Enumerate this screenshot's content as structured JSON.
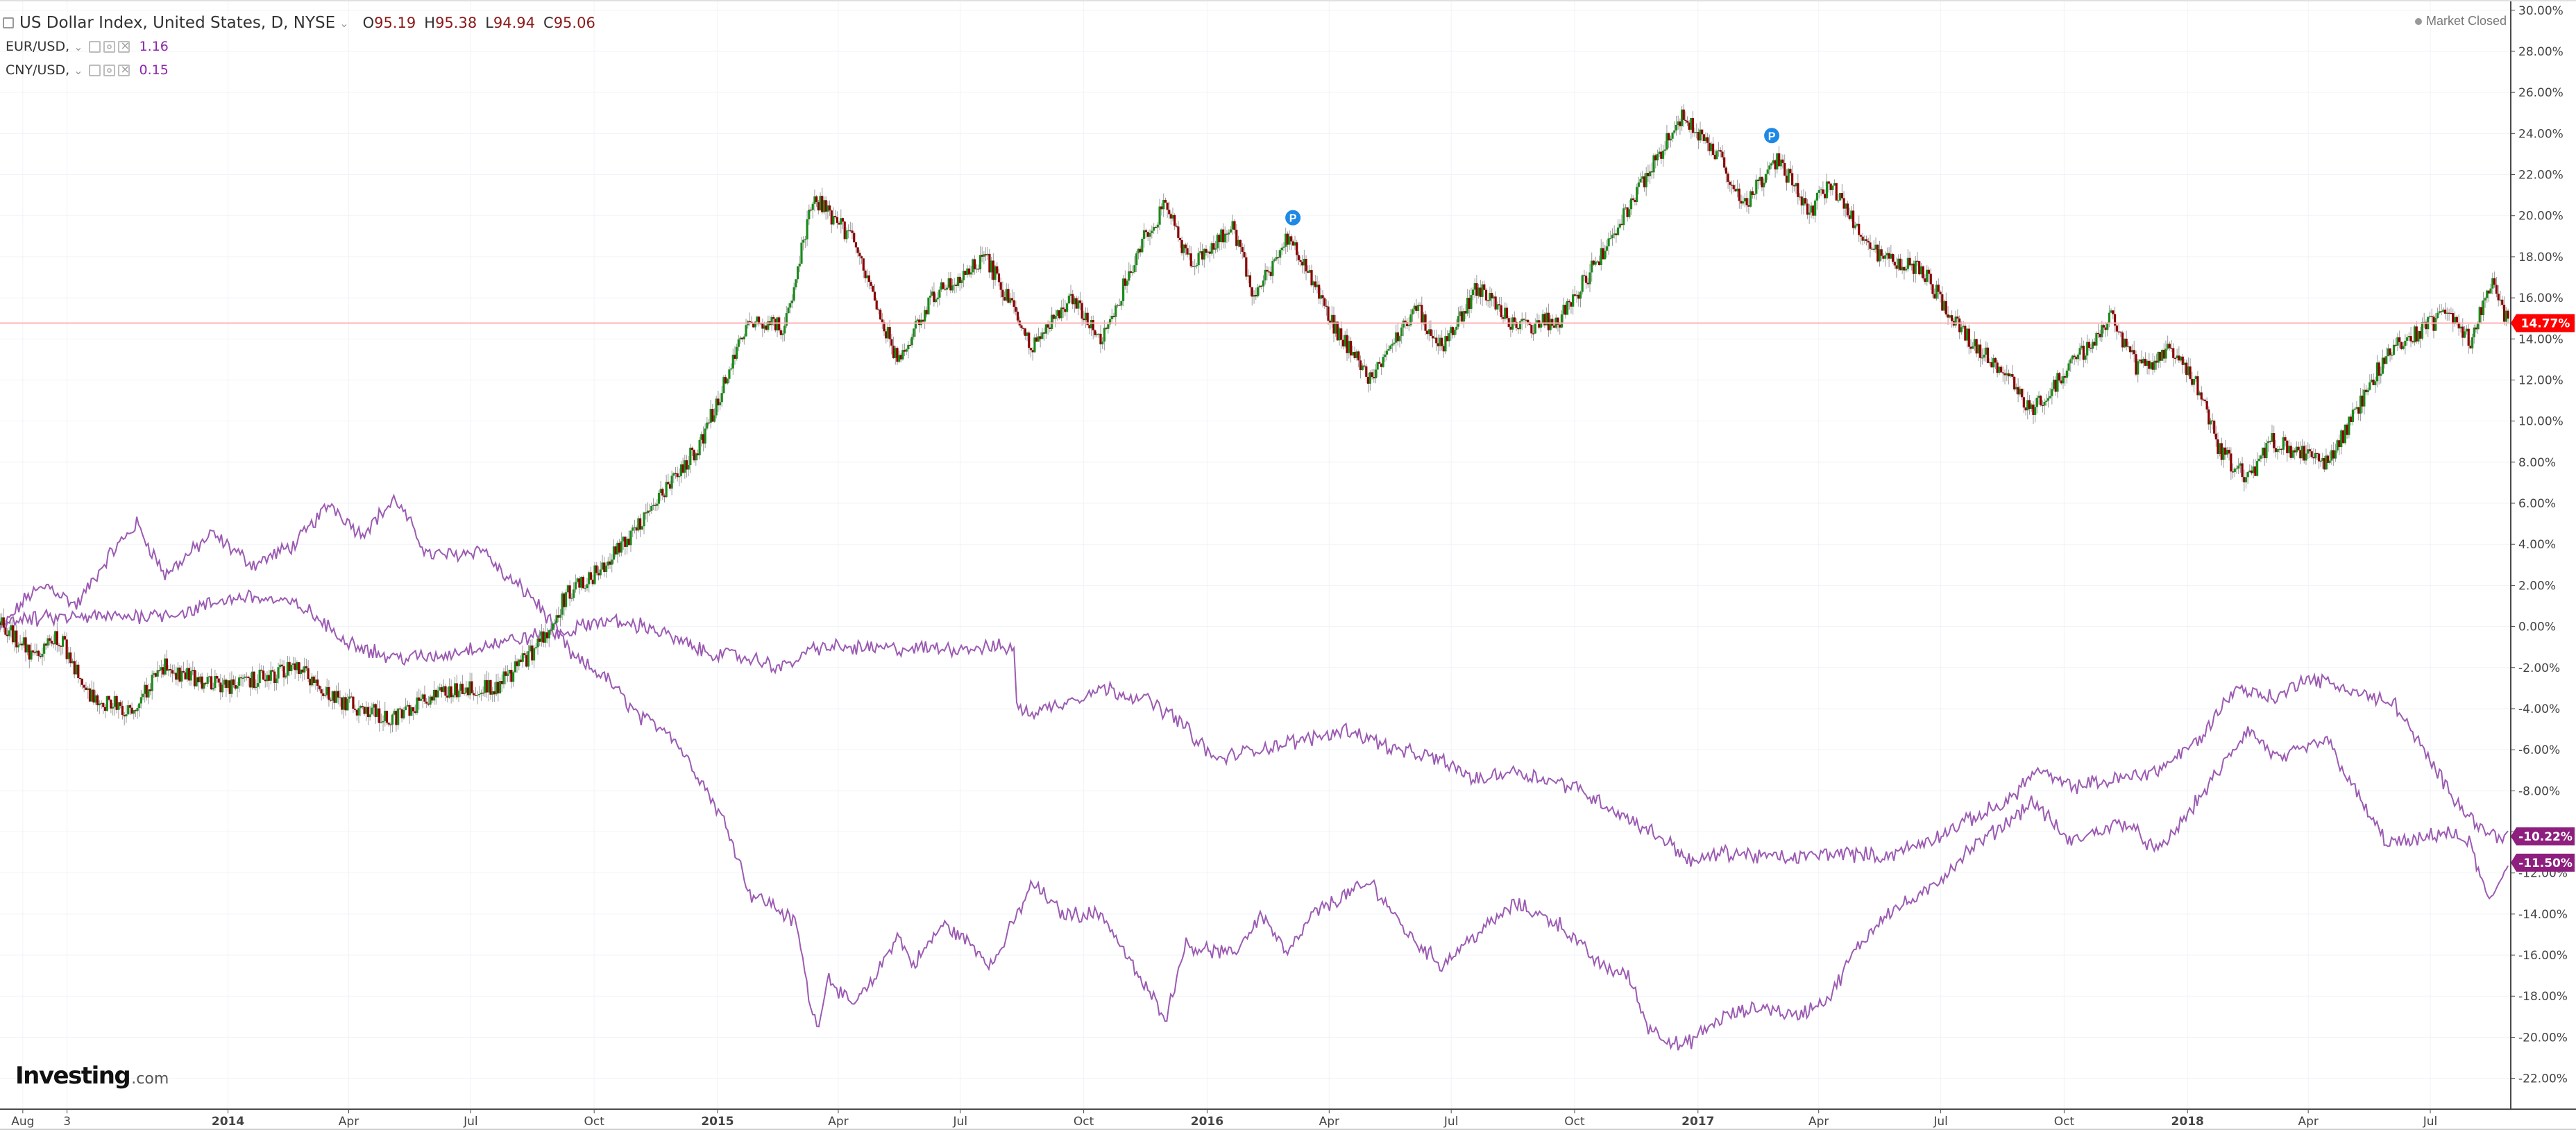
{
  "header": {
    "instrument_title": "US Dollar Index, United States, D, NYSE",
    "ohlc": {
      "open_label": "O",
      "open": "95.19",
      "high_label": "H",
      "high": "95.38",
      "low_label": "L",
      "low": "94.94",
      "close_label": "C",
      "close": "95.06"
    },
    "indicators": [
      {
        "name": "EUR/USD,",
        "value": "1.16"
      },
      {
        "name": "CNY/USD,",
        "value": "0.15"
      }
    ],
    "market_status": "Market Closed"
  },
  "logo": {
    "main": "Investing",
    "suffix": ".com"
  },
  "colors": {
    "up_candle": "#1b8a1b",
    "down_candle": "#8b0000",
    "comparison_line": "#9c5bb3",
    "last_price_line": "#ffb3b3",
    "badge_main": "#ff0000",
    "badge_series": "#8e1f7e",
    "note_marker": "#1e88e5"
  },
  "chart_data": {
    "type": "line",
    "title": "",
    "xlabel": "",
    "ylabel": "",
    "ylim": [
      -23.5,
      30.5
    ],
    "y_ticks": [
      "30.00%",
      "28.00%",
      "26.00%",
      "24.00%",
      "22.00%",
      "20.00%",
      "18.00%",
      "16.00%",
      "14.00%",
      "12.00%",
      "10.00%",
      "8.00%",
      "6.00%",
      "4.00%",
      "2.00%",
      "0.00%",
      "-2.00%",
      "-4.00%",
      "-6.00%",
      "-8.00%",
      "-10.00%",
      "-12.00%",
      "-14.00%",
      "-16.00%",
      "-18.00%",
      "-20.00%",
      "-22.00%"
    ],
    "y_tick_values": [
      30,
      28,
      26,
      24,
      22,
      20,
      18,
      16,
      14,
      12,
      10,
      8,
      6,
      4,
      2,
      0,
      -2,
      -4,
      -6,
      -8,
      -10,
      -12,
      -14,
      -16,
      -18,
      -20,
      -22
    ],
    "x_labels": [
      "Aug",
      "3",
      "2014",
      "Apr",
      "Jul",
      "Oct",
      "2015",
      "Apr",
      "Jul",
      "Oct",
      "2016",
      "Apr",
      "Jul",
      "Oct",
      "2017",
      "Apr",
      "Jul",
      "Oct",
      "2018",
      "Apr",
      "Jul"
    ],
    "x_label_positions": [
      "2013-08-01",
      "2013-09-03",
      "2014-01-01",
      "2014-04-01",
      "2014-07-01",
      "2014-10-01",
      "2015-01-01",
      "2015-04-01",
      "2015-07-01",
      "2015-10-01",
      "2016-01-01",
      "2016-04-01",
      "2016-07-01",
      "2016-10-01",
      "2017-01-01",
      "2017-04-01",
      "2017-07-01",
      "2017-10-01",
      "2018-01-01",
      "2018-04-01",
      "2018-07-01"
    ],
    "x_range": [
      "2013-07-15",
      "2018-08-30"
    ],
    "last_value_line": 14.77,
    "badges": [
      {
        "label": "14.77%",
        "value": 14.77,
        "series": "main"
      },
      {
        "label": "-10.22%",
        "value": -10.22,
        "series": "series_a"
      },
      {
        "label": "-11.50%",
        "value": -11.5,
        "series": "series_b"
      }
    ],
    "note_markers": [
      {
        "label": "P",
        "date": "2016-03-05",
        "value": 19.9
      },
      {
        "label": "P",
        "date": "2017-02-25",
        "value": 23.9
      }
    ],
    "candles_approx_close_path": [
      [
        "2013-07-15",
        0.2
      ],
      [
        "2013-08-10",
        -1.5
      ],
      [
        "2013-08-28",
        -0.5
      ],
      [
        "2013-09-20",
        -3.5
      ],
      [
        "2013-10-20",
        -4.0
      ],
      [
        "2013-11-15",
        -2.0
      ],
      [
        "2014-01-01",
        -3.0
      ],
      [
        "2014-02-20",
        -2.0
      ],
      [
        "2014-03-20",
        -3.5
      ],
      [
        "2014-05-05",
        -4.5
      ],
      [
        "2014-06-15",
        -3.0
      ],
      [
        "2014-07-20",
        -3.0
      ],
      [
        "2014-08-20",
        -1.0
      ],
      [
        "2014-09-10",
        1.5
      ],
      [
        "2014-10-10",
        3.0
      ],
      [
        "2014-11-10",
        5.5
      ],
      [
        "2014-12-20",
        9.0
      ],
      [
        "2015-01-25",
        15.0
      ],
      [
        "2015-02-20",
        14.5
      ],
      [
        "2015-03-13",
        21.0
      ],
      [
        "2015-04-10",
        19.0
      ],
      [
        "2015-05-15",
        13.0
      ],
      [
        "2015-06-10",
        16.0
      ],
      [
        "2015-07-20",
        18.0
      ],
      [
        "2015-08-24",
        13.5
      ],
      [
        "2015-09-20",
        16.0
      ],
      [
        "2015-10-15",
        14.0
      ],
      [
        "2015-11-15",
        19.0
      ],
      [
        "2015-12-01",
        20.5
      ],
      [
        "2015-12-20",
        17.5
      ],
      [
        "2016-01-20",
        19.5
      ],
      [
        "2016-02-05",
        16.0
      ],
      [
        "2016-03-01",
        19.0
      ],
      [
        "2016-04-10",
        14.0
      ],
      [
        "2016-05-03",
        12.0
      ],
      [
        "2016-06-05",
        15.5
      ],
      [
        "2016-06-24",
        13.5
      ],
      [
        "2016-07-20",
        16.5
      ],
      [
        "2016-08-20",
        14.5
      ],
      [
        "2016-09-20",
        15.0
      ],
      [
        "2016-10-25",
        18.5
      ],
      [
        "2016-11-15",
        21.0
      ],
      [
        "2016-12-20",
        24.8
      ],
      [
        "2017-01-15",
        23.0
      ],
      [
        "2017-02-05",
        20.5
      ],
      [
        "2017-03-01",
        22.8
      ],
      [
        "2017-03-25",
        20.2
      ],
      [
        "2017-04-10",
        21.5
      ],
      [
        "2017-05-15",
        18.0
      ],
      [
        "2017-06-15",
        17.5
      ],
      [
        "2017-07-15",
        14.5
      ],
      [
        "2017-08-15",
        12.5
      ],
      [
        "2017-09-08",
        10.5
      ],
      [
        "2017-10-10",
        13.0
      ],
      [
        "2017-11-05",
        15.0
      ],
      [
        "2017-11-25",
        12.5
      ],
      [
        "2017-12-20",
        13.5
      ],
      [
        "2018-01-10",
        11.5
      ],
      [
        "2018-01-25",
        8.5
      ],
      [
        "2018-02-15",
        7.2
      ],
      [
        "2018-03-05",
        9.0
      ],
      [
        "2018-04-05",
        8.2
      ],
      [
        "2018-04-17",
        8.0
      ],
      [
        "2018-05-10",
        11.0
      ],
      [
        "2018-06-01",
        13.5
      ],
      [
        "2018-06-25",
        14.5
      ],
      [
        "2018-07-15",
        15.2
      ],
      [
        "2018-07-31",
        13.8
      ],
      [
        "2018-08-15",
        16.8
      ],
      [
        "2018-08-28",
        14.77
      ]
    ],
    "series": [
      {
        "name": "EUR/USD,",
        "points": [
          [
            "2013-07-15",
            -0.2
          ],
          [
            "2013-08-05",
            1.5
          ],
          [
            "2013-08-20",
            2.0
          ],
          [
            "2013-09-10",
            1.0
          ],
          [
            "2013-10-05",
            3.5
          ],
          [
            "2013-10-25",
            5.0
          ],
          [
            "2013-11-15",
            2.5
          ],
          [
            "2013-12-20",
            4.5
          ],
          [
            "2014-01-20",
            3.0
          ],
          [
            "2014-02-20",
            4.0
          ],
          [
            "2014-03-18",
            6.0
          ],
          [
            "2014-04-10",
            4.5
          ],
          [
            "2014-05-06",
            6.2
          ],
          [
            "2014-05-30",
            3.5
          ],
          [
            "2014-06-20",
            3.5
          ],
          [
            "2014-07-10",
            3.8
          ],
          [
            "2014-07-25",
            2.5
          ],
          [
            "2014-08-15",
            1.5
          ],
          [
            "2014-09-01",
            0.0
          ],
          [
            "2014-09-15",
            -1.5
          ],
          [
            "2014-10-10",
            -2.5
          ],
          [
            "2014-11-05",
            -4.5
          ],
          [
            "2014-11-25",
            -5.0
          ],
          [
            "2014-12-20",
            -7.5
          ],
          [
            "2015-01-10",
            -10.0
          ],
          [
            "2015-01-25",
            -13.0
          ],
          [
            "2015-02-10",
            -13.5
          ],
          [
            "2015-03-01",
            -14.5
          ],
          [
            "2015-03-10",
            -18.0
          ],
          [
            "2015-03-16",
            -19.5
          ],
          [
            "2015-03-25",
            -17.0
          ],
          [
            "2015-04-10",
            -18.5
          ],
          [
            "2015-04-25",
            -17.5
          ],
          [
            "2015-05-15",
            -15.0
          ],
          [
            "2015-05-27",
            -16.5
          ],
          [
            "2015-06-18",
            -14.5
          ],
          [
            "2015-07-10",
            -15.5
          ],
          [
            "2015-07-25",
            -16.5
          ],
          [
            "2015-08-24",
            -12.5
          ],
          [
            "2015-09-15",
            -14.0
          ],
          [
            "2015-10-15",
            -14.0
          ],
          [
            "2015-10-28",
            -15.5
          ],
          [
            "2015-11-15",
            -17.5
          ],
          [
            "2015-12-02",
            -19.0
          ],
          [
            "2015-12-15",
            -15.5
          ],
          [
            "2016-01-20",
            -16.0
          ],
          [
            "2016-02-11",
            -14.0
          ],
          [
            "2016-03-01",
            -16.0
          ],
          [
            "2016-03-20",
            -14.0
          ],
          [
            "2016-04-15",
            -13.0
          ],
          [
            "2016-05-03",
            -12.5
          ],
          [
            "2016-05-30",
            -15.0
          ],
          [
            "2016-06-24",
            -16.5
          ],
          [
            "2016-07-10",
            -15.5
          ],
          [
            "2016-08-18",
            -13.5
          ],
          [
            "2016-09-20",
            -14.5
          ],
          [
            "2016-10-20",
            -16.5
          ],
          [
            "2016-11-10",
            -17.0
          ],
          [
            "2016-11-25",
            -19.5
          ],
          [
            "2016-12-20",
            -20.5
          ],
          [
            "2017-01-20",
            -19.0
          ],
          [
            "2017-02-20",
            -18.5
          ],
          [
            "2017-03-15",
            -19.0
          ],
          [
            "2017-04-10",
            -18.0
          ],
          [
            "2017-04-26",
            -16.0
          ],
          [
            "2017-05-20",
            -14.0
          ],
          [
            "2017-06-20",
            -13.0
          ],
          [
            "2017-07-20",
            -11.0
          ],
          [
            "2017-08-20",
            -9.5
          ],
          [
            "2017-09-08",
            -8.5
          ],
          [
            "2017-10-05",
            -10.5
          ],
          [
            "2017-10-25",
            -10.0
          ],
          [
            "2017-11-15",
            -9.5
          ],
          [
            "2017-12-10",
            -11.0
          ],
          [
            "2017-12-28",
            -9.5
          ],
          [
            "2018-01-25",
            -7.0
          ],
          [
            "2018-02-15",
            -5.0
          ],
          [
            "2018-03-10",
            -6.5
          ],
          [
            "2018-04-15",
            -5.5
          ],
          [
            "2018-05-10",
            -8.5
          ],
          [
            "2018-05-29",
            -10.5
          ],
          [
            "2018-06-20",
            -10.5
          ],
          [
            "2018-07-10",
            -10.0
          ],
          [
            "2018-07-30",
            -10.5
          ],
          [
            "2018-08-14",
            -13.5
          ],
          [
            "2018-08-28",
            -11.5
          ]
        ]
      },
      {
        "name": "CNY/USD,",
        "points": [
          [
            "2013-07-15",
            0.2
          ],
          [
            "2013-08-20",
            0.4
          ],
          [
            "2013-10-20",
            0.5
          ],
          [
            "2013-12-01",
            0.7
          ],
          [
            "2013-12-25",
            1.2
          ],
          [
            "2014-01-15",
            1.5
          ],
          [
            "2014-02-25",
            1.0
          ],
          [
            "2014-03-25",
            -0.5
          ],
          [
            "2014-04-30",
            -1.5
          ],
          [
            "2014-06-05",
            -1.5
          ],
          [
            "2014-07-05",
            -1.0
          ],
          [
            "2014-08-15",
            -0.5
          ],
          [
            "2014-09-10",
            -0.3
          ],
          [
            "2014-10-05",
            0.3
          ],
          [
            "2014-11-10",
            0.0
          ],
          [
            "2014-12-20",
            -1.2
          ],
          [
            "2015-01-20",
            -1.5
          ],
          [
            "2015-02-20",
            -2.0
          ],
          [
            "2015-03-15",
            -1.0
          ],
          [
            "2015-05-15",
            -1.1
          ],
          [
            "2015-08-10",
            -1.0
          ],
          [
            "2015-08-12",
            -4.0
          ],
          [
            "2015-08-25",
            -4.2
          ],
          [
            "2015-10-15",
            -3.0
          ],
          [
            "2015-11-15",
            -3.5
          ],
          [
            "2015-12-10",
            -4.5
          ],
          [
            "2016-01-07",
            -6.5
          ],
          [
            "2016-02-05",
            -6.0
          ],
          [
            "2016-03-15",
            -5.5
          ],
          [
            "2016-04-15",
            -5.0
          ],
          [
            "2016-05-20",
            -6.0
          ],
          [
            "2016-06-24",
            -6.5
          ],
          [
            "2016-07-20",
            -7.5
          ],
          [
            "2016-08-15",
            -7.0
          ],
          [
            "2016-10-01",
            -7.8
          ],
          [
            "2016-11-01",
            -9.0
          ],
          [
            "2016-12-10",
            -10.5
          ],
          [
            "2016-12-28",
            -11.5
          ],
          [
            "2017-01-20",
            -11.0
          ],
          [
            "2017-03-10",
            -11.3
          ],
          [
            "2017-04-15",
            -11.0
          ],
          [
            "2017-05-20",
            -11.2
          ],
          [
            "2017-06-20",
            -10.5
          ],
          [
            "2017-07-20",
            -9.5
          ],
          [
            "2017-08-20",
            -8.5
          ],
          [
            "2017-09-10",
            -7.0
          ],
          [
            "2017-10-05",
            -7.8
          ],
          [
            "2017-11-05",
            -7.5
          ],
          [
            "2017-12-10",
            -7.0
          ],
          [
            "2018-01-10",
            -5.5
          ],
          [
            "2018-02-05",
            -3.0
          ],
          [
            "2018-03-10",
            -3.5
          ],
          [
            "2018-03-28",
            -2.5
          ],
          [
            "2018-04-20",
            -2.8
          ],
          [
            "2018-05-20",
            -3.5
          ],
          [
            "2018-06-05",
            -3.8
          ],
          [
            "2018-06-25",
            -6.0
          ],
          [
            "2018-07-15",
            -8.0
          ],
          [
            "2018-08-10",
            -10.0
          ],
          [
            "2018-08-28",
            -10.22
          ]
        ]
      }
    ]
  }
}
